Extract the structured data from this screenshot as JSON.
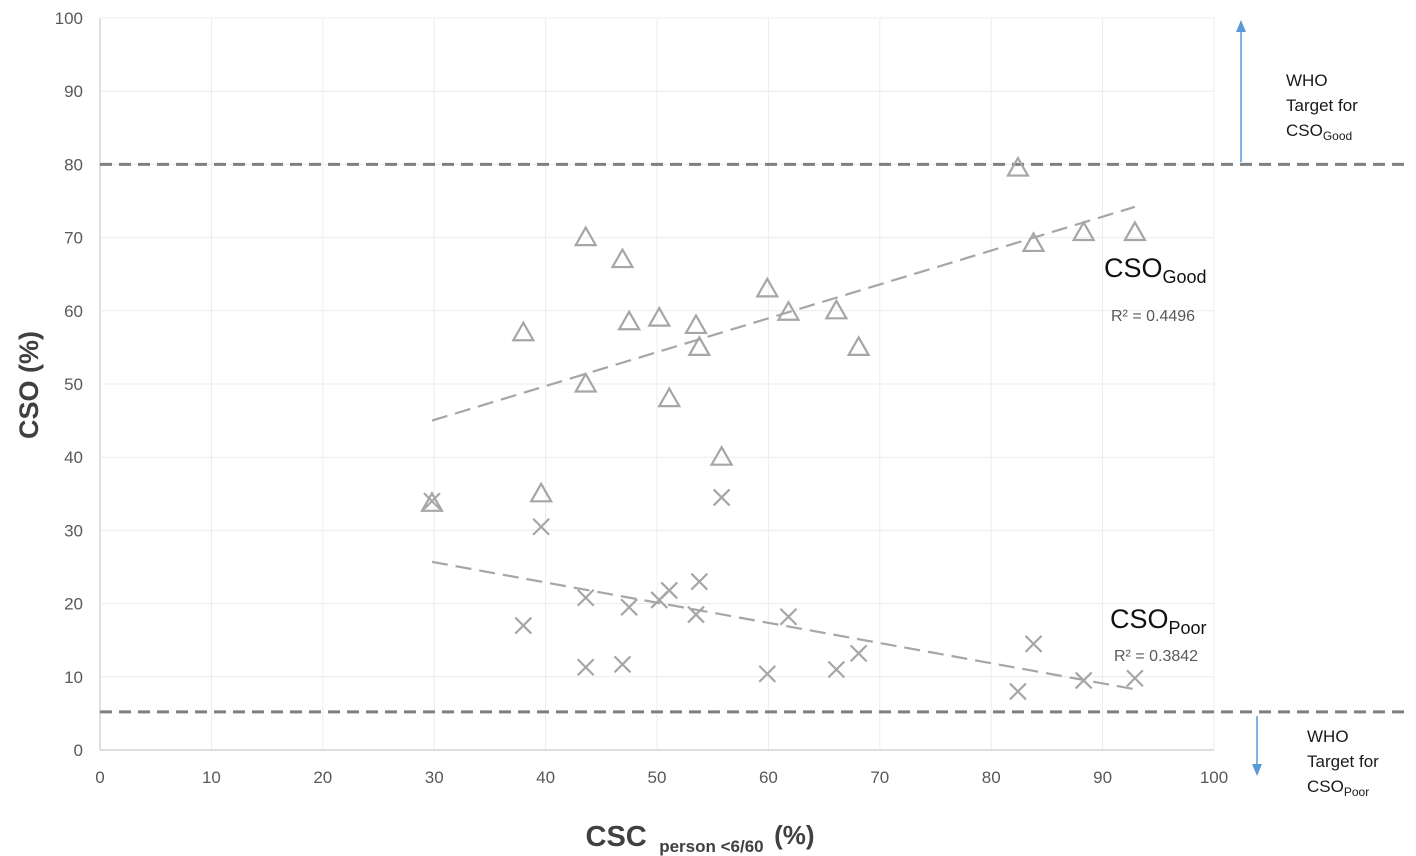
{
  "chart_data": {
    "type": "scatter",
    "title": "",
    "xlabel": {
      "main": "CSC",
      "sub": "person <6/60",
      "unit": "(%)"
    },
    "ylabel": "CSO (%)",
    "xlim": [
      0,
      100
    ],
    "ylim": [
      0,
      100
    ],
    "x_ticks": [
      "0",
      "10",
      "20",
      "30",
      "40",
      "50",
      "60",
      "70",
      "80",
      "90",
      "100"
    ],
    "y_ticks": [
      "0",
      "10",
      "20",
      "30",
      "40",
      "50",
      "60",
      "70",
      "80",
      "90",
      "100"
    ],
    "grid": "vertical and horizontal, light",
    "series": [
      {
        "label_main": "CSO",
        "label_sub": "Good",
        "marker": "triangle",
        "color": "#a6a6a6",
        "x": [
          29.8,
          38,
          39.6,
          43.6,
          43.6,
          46.9,
          47.5,
          50.2,
          51.1,
          53.5,
          53.8,
          55.8,
          59.9,
          61.8,
          66.1,
          68.1,
          82.4,
          83.8,
          88.3,
          92.9
        ],
        "y": [
          33.7,
          57,
          35,
          50,
          70,
          67,
          58.5,
          59,
          48,
          58,
          55,
          40,
          63,
          59.8,
          60,
          55,
          79.5,
          69.2,
          70.7,
          70.7
        ],
        "trendline": {
          "x": [
            29.8,
            92.9
          ],
          "y": [
            45,
            74.2
          ]
        },
        "r2_label": "R² = 0.4496"
      },
      {
        "label_main": "CSO",
        "label_sub": "Poor",
        "marker": "x",
        "color": "#a6a6a6",
        "x": [
          29.8,
          38,
          39.6,
          43.6,
          43.6,
          46.9,
          47.5,
          50.2,
          51.1,
          53.5,
          53.8,
          55.8,
          59.9,
          61.8,
          66.1,
          68.1,
          82.4,
          83.8,
          88.3,
          92.9
        ],
        "y": [
          34,
          17,
          30.5,
          20.8,
          11.3,
          11.7,
          19.5,
          20.5,
          21.8,
          18.5,
          23,
          34.5,
          10.4,
          18.2,
          11,
          13.2,
          8,
          14.5,
          9.5,
          9.8
        ],
        "trendline": {
          "x": [
            29.8,
            92.9
          ],
          "y": [
            25.7,
            8.3
          ]
        },
        "r2_label": "R² = 0.3842"
      }
    ],
    "reference_lines": [
      {
        "y": 80,
        "style": "dashed",
        "color": "#7f7f7f",
        "note": [
          "WHO",
          "Target for"
        ],
        "note_sub_main": "CSO",
        "note_sub": "Good",
        "arrow": "up",
        "arrow_color": "#5b9bd5"
      },
      {
        "y": 5.2,
        "style": "dashed",
        "color": "#7f7f7f",
        "note": [
          "WHO",
          "Target for"
        ],
        "note_sub_main": "CSO",
        "note_sub": "Poor",
        "arrow": "down",
        "arrow_color": "#5b9bd5"
      }
    ]
  }
}
